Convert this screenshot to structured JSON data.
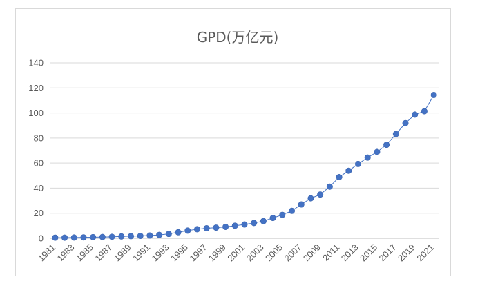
{
  "chart_data": {
    "type": "line",
    "title": "GPD(万亿元)",
    "xlabel": "",
    "ylabel": "",
    "ylim": [
      0,
      140
    ],
    "yticks": [
      "0",
      "20",
      "40",
      "60",
      "80",
      "100",
      "120",
      "140"
    ],
    "x": [
      1981,
      1982,
      1983,
      1984,
      1985,
      1986,
      1987,
      1988,
      1989,
      1990,
      1991,
      1992,
      1993,
      1994,
      1995,
      1996,
      1997,
      1998,
      1999,
      2000,
      2001,
      2002,
      2003,
      2004,
      2005,
      2006,
      2007,
      2008,
      2009,
      2010,
      2011,
      2012,
      2013,
      2014,
      2015,
      2016,
      2017,
      2018,
      2019,
      2020,
      2021
    ],
    "xtick_labels": [
      "1981",
      "1983",
      "1985",
      "1987",
      "1989",
      "1991",
      "1993",
      "1995",
      "1997",
      "1999",
      "2001",
      "2003",
      "2005",
      "2007",
      "2009",
      "2011",
      "2013",
      "2015",
      "2017",
      "2019",
      "2021"
    ],
    "series": [
      {
        "values": [
          0.5,
          0.5,
          0.6,
          0.7,
          0.9,
          1.0,
          1.2,
          1.5,
          1.7,
          1.9,
          2.2,
          2.7,
          3.5,
          4.8,
          6.1,
          7.2,
          8.0,
          8.5,
          9.1,
          10.0,
          11.0,
          12.2,
          13.7,
          16.2,
          18.7,
          21.9,
          27.0,
          31.9,
          34.9,
          41.2,
          48.8,
          53.9,
          59.3,
          64.4,
          68.9,
          74.6,
          83.2,
          91.9,
          98.7,
          101.4,
          114.4
        ],
        "color": "#4472c4"
      }
    ],
    "grid": true,
    "legend": "none"
  }
}
